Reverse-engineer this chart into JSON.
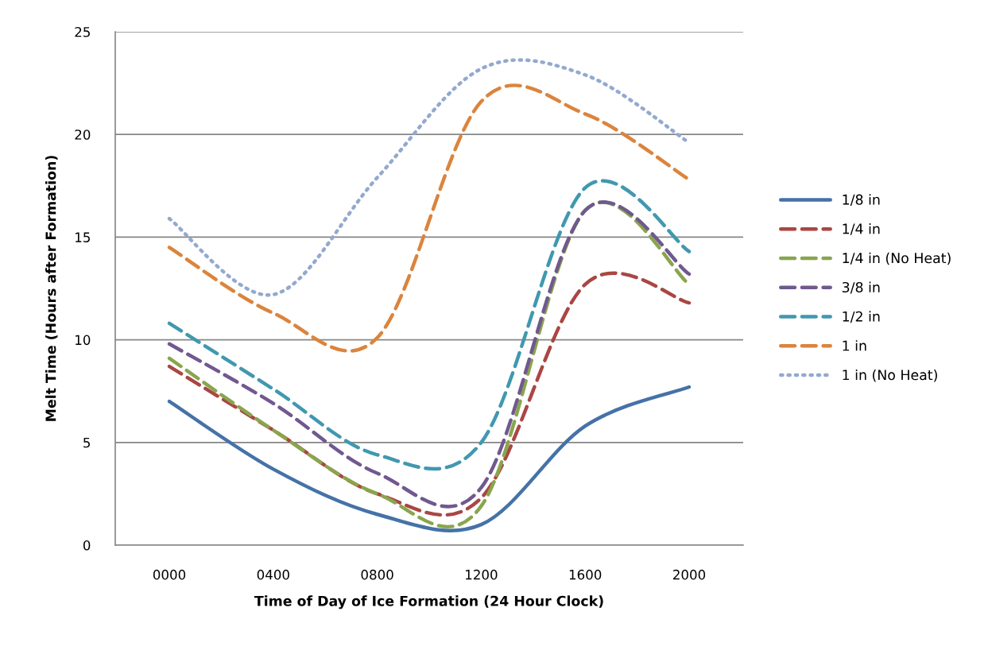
{
  "chart_data": {
    "type": "line",
    "xlabel": "Time of Day of Ice Formation (24 Hour Clock)",
    "ylabel": "Melt Time (Hours after Formation)",
    "categories": [
      "0000",
      "0400",
      "0800",
      "1200",
      "1600",
      "2000"
    ],
    "ylim": [
      0,
      25
    ],
    "yticks": [
      0,
      5,
      10,
      15,
      20,
      25
    ],
    "grid": "y",
    "legend": "right",
    "marker": "none",
    "series": [
      {
        "name": "1/8 in",
        "color": "#4572a7",
        "line_style": "solid",
        "values": [
          7.0,
          3.7,
          1.5,
          1.0,
          5.8,
          7.7
        ]
      },
      {
        "name": "1/4 in",
        "color": "#aa4643",
        "line_style": "dashed",
        "values": [
          8.7,
          5.6,
          2.5,
          2.3,
          12.7,
          11.8
        ]
      },
      {
        "name": "1/4 in (No Heat)",
        "color": "#89a54e",
        "line_style": "dashed",
        "values": [
          9.1,
          5.6,
          2.5,
          1.9,
          16.3,
          12.7
        ]
      },
      {
        "name": "3/8 in",
        "color": "#71588f",
        "line_style": "dashed",
        "values": [
          9.8,
          6.9,
          3.5,
          2.8,
          16.3,
          13.2
        ]
      },
      {
        "name": "1/2 in",
        "color": "#4198af",
        "line_style": "dashed",
        "values": [
          10.8,
          7.6,
          4.4,
          5.0,
          17.4,
          14.3
        ]
      },
      {
        "name": "1 in",
        "color": "#db843d",
        "line_style": "dashed",
        "values": [
          14.5,
          11.3,
          10.1,
          21.6,
          21.0,
          17.8
        ]
      },
      {
        "name": "1 in (No Heat)",
        "color": "#93a9cf",
        "line_style": "dotted",
        "values": [
          15.9,
          12.2,
          17.9,
          23.2,
          22.9,
          19.6
        ]
      }
    ]
  }
}
